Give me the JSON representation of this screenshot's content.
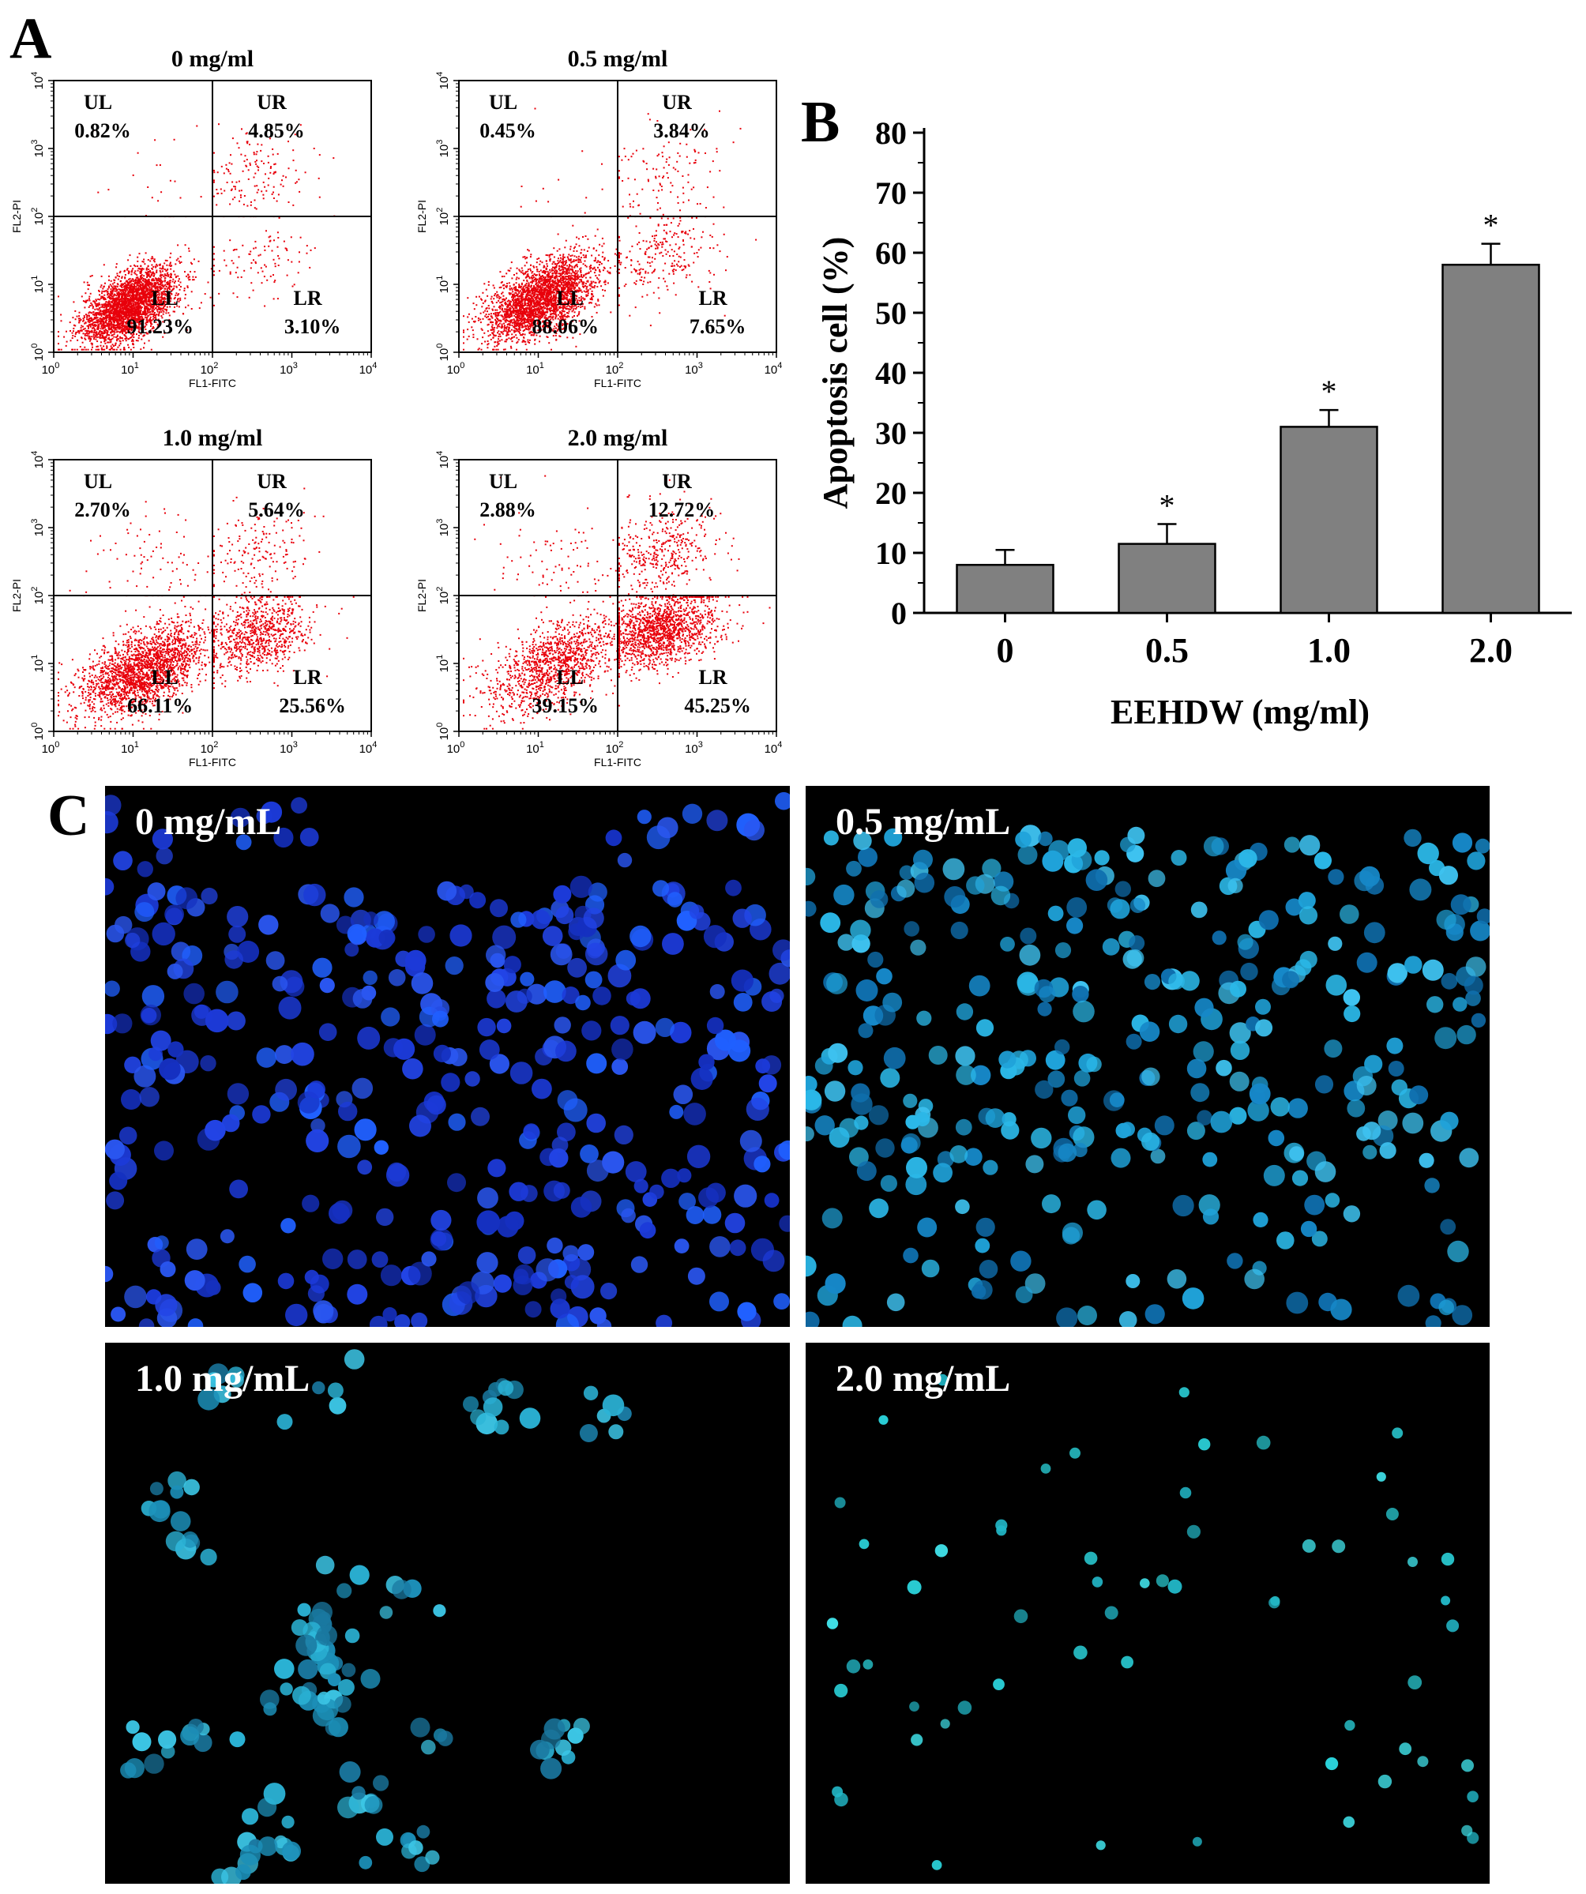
{
  "panel_letters": {
    "a": "A",
    "b": "B",
    "c": "C"
  },
  "flow_panels": [
    {
      "title": "0 mg/ml",
      "quadrants": {
        "UL": "0.82%",
        "UR": "4.85%",
        "LL": "91.23%",
        "LR": "3.10%"
      }
    },
    {
      "title": "0.5 mg/ml",
      "quadrants": {
        "UL": "0.45%",
        "UR": "3.84%",
        "LL": "88.06%",
        "LR": "7.65%"
      }
    },
    {
      "title": "1.0 mg/ml",
      "quadrants": {
        "UL": "2.70%",
        "UR": "5.64%",
        "LL": "66.11%",
        "LR": "25.56%"
      }
    },
    {
      "title": "2.0 mg/ml",
      "quadrants": {
        "UL": "2.88%",
        "UR": "12.72%",
        "LL": "39.15%",
        "LR": "45.25%"
      }
    }
  ],
  "flow_axes": {
    "xlabel": "FL1-FITC",
    "ylabel": "FL2-PI",
    "ticks": [
      "10",
      "10",
      "10",
      "10",
      "10"
    ],
    "tick_exponents": [
      "0",
      "1",
      "2",
      "3",
      "4"
    ],
    "quadrant_names": [
      "UL",
      "UR",
      "LL",
      "LR"
    ]
  },
  "micrographs": [
    {
      "label": "0 mg/mL"
    },
    {
      "label": "0.5 mg/mL"
    },
    {
      "label": "1.0 mg/mL"
    },
    {
      "label": "2.0 mg/mL"
    }
  ],
  "chart_data": [
    {
      "type": "scatter",
      "title": "0 mg/ml",
      "xlabel": "FL1-FITC",
      "ylabel": "FL2-PI",
      "xscale": "log",
      "yscale": "log",
      "xlim": [
        1,
        10000
      ],
      "ylim": [
        1,
        10000
      ],
      "quadrant_percent": {
        "UL": 0.82,
        "UR": 4.85,
        "LL": 91.23,
        "LR": 3.1
      },
      "color": "#e8000b"
    },
    {
      "type": "scatter",
      "title": "0.5 mg/ml",
      "xlabel": "FL1-FITC",
      "ylabel": "FL2-PI",
      "xscale": "log",
      "yscale": "log",
      "xlim": [
        1,
        10000
      ],
      "ylim": [
        1,
        10000
      ],
      "quadrant_percent": {
        "UL": 0.45,
        "UR": 3.84,
        "LL": 88.06,
        "LR": 7.65
      },
      "color": "#e8000b"
    },
    {
      "type": "scatter",
      "title": "1.0 mg/ml",
      "xlabel": "FL1-FITC",
      "ylabel": "FL2-PI",
      "xscale": "log",
      "yscale": "log",
      "xlim": [
        1,
        10000
      ],
      "ylim": [
        1,
        10000
      ],
      "quadrant_percent": {
        "UL": 2.7,
        "UR": 5.64,
        "LL": 66.11,
        "LR": 25.56
      },
      "color": "#e8000b"
    },
    {
      "type": "scatter",
      "title": "2.0 mg/ml",
      "xlabel": "FL1-FITC",
      "ylabel": "FL2-PI",
      "xscale": "log",
      "yscale": "log",
      "xlim": [
        1,
        10000
      ],
      "ylim": [
        1,
        10000
      ],
      "quadrant_percent": {
        "UL": 2.88,
        "UR": 12.72,
        "LL": 39.15,
        "LR": 45.25
      },
      "color": "#e8000b"
    },
    {
      "type": "bar",
      "categories": [
        "0",
        "0.5",
        "1.0",
        "2.0"
      ],
      "values": [
        8,
        11.5,
        31,
        58
      ],
      "errors": [
        2.5,
        3.3,
        2.8,
        3.5
      ],
      "significance": [
        "",
        "*",
        "*",
        "*"
      ],
      "xlabel": "EEHDW (mg/ml)",
      "ylabel": "Apoptosis cell (%)",
      "ylim": [
        0,
        80
      ],
      "yticks": [
        0,
        10,
        20,
        30,
        40,
        50,
        60,
        70,
        80
      ],
      "bar_color": "#808080",
      "grid": false
    }
  ]
}
